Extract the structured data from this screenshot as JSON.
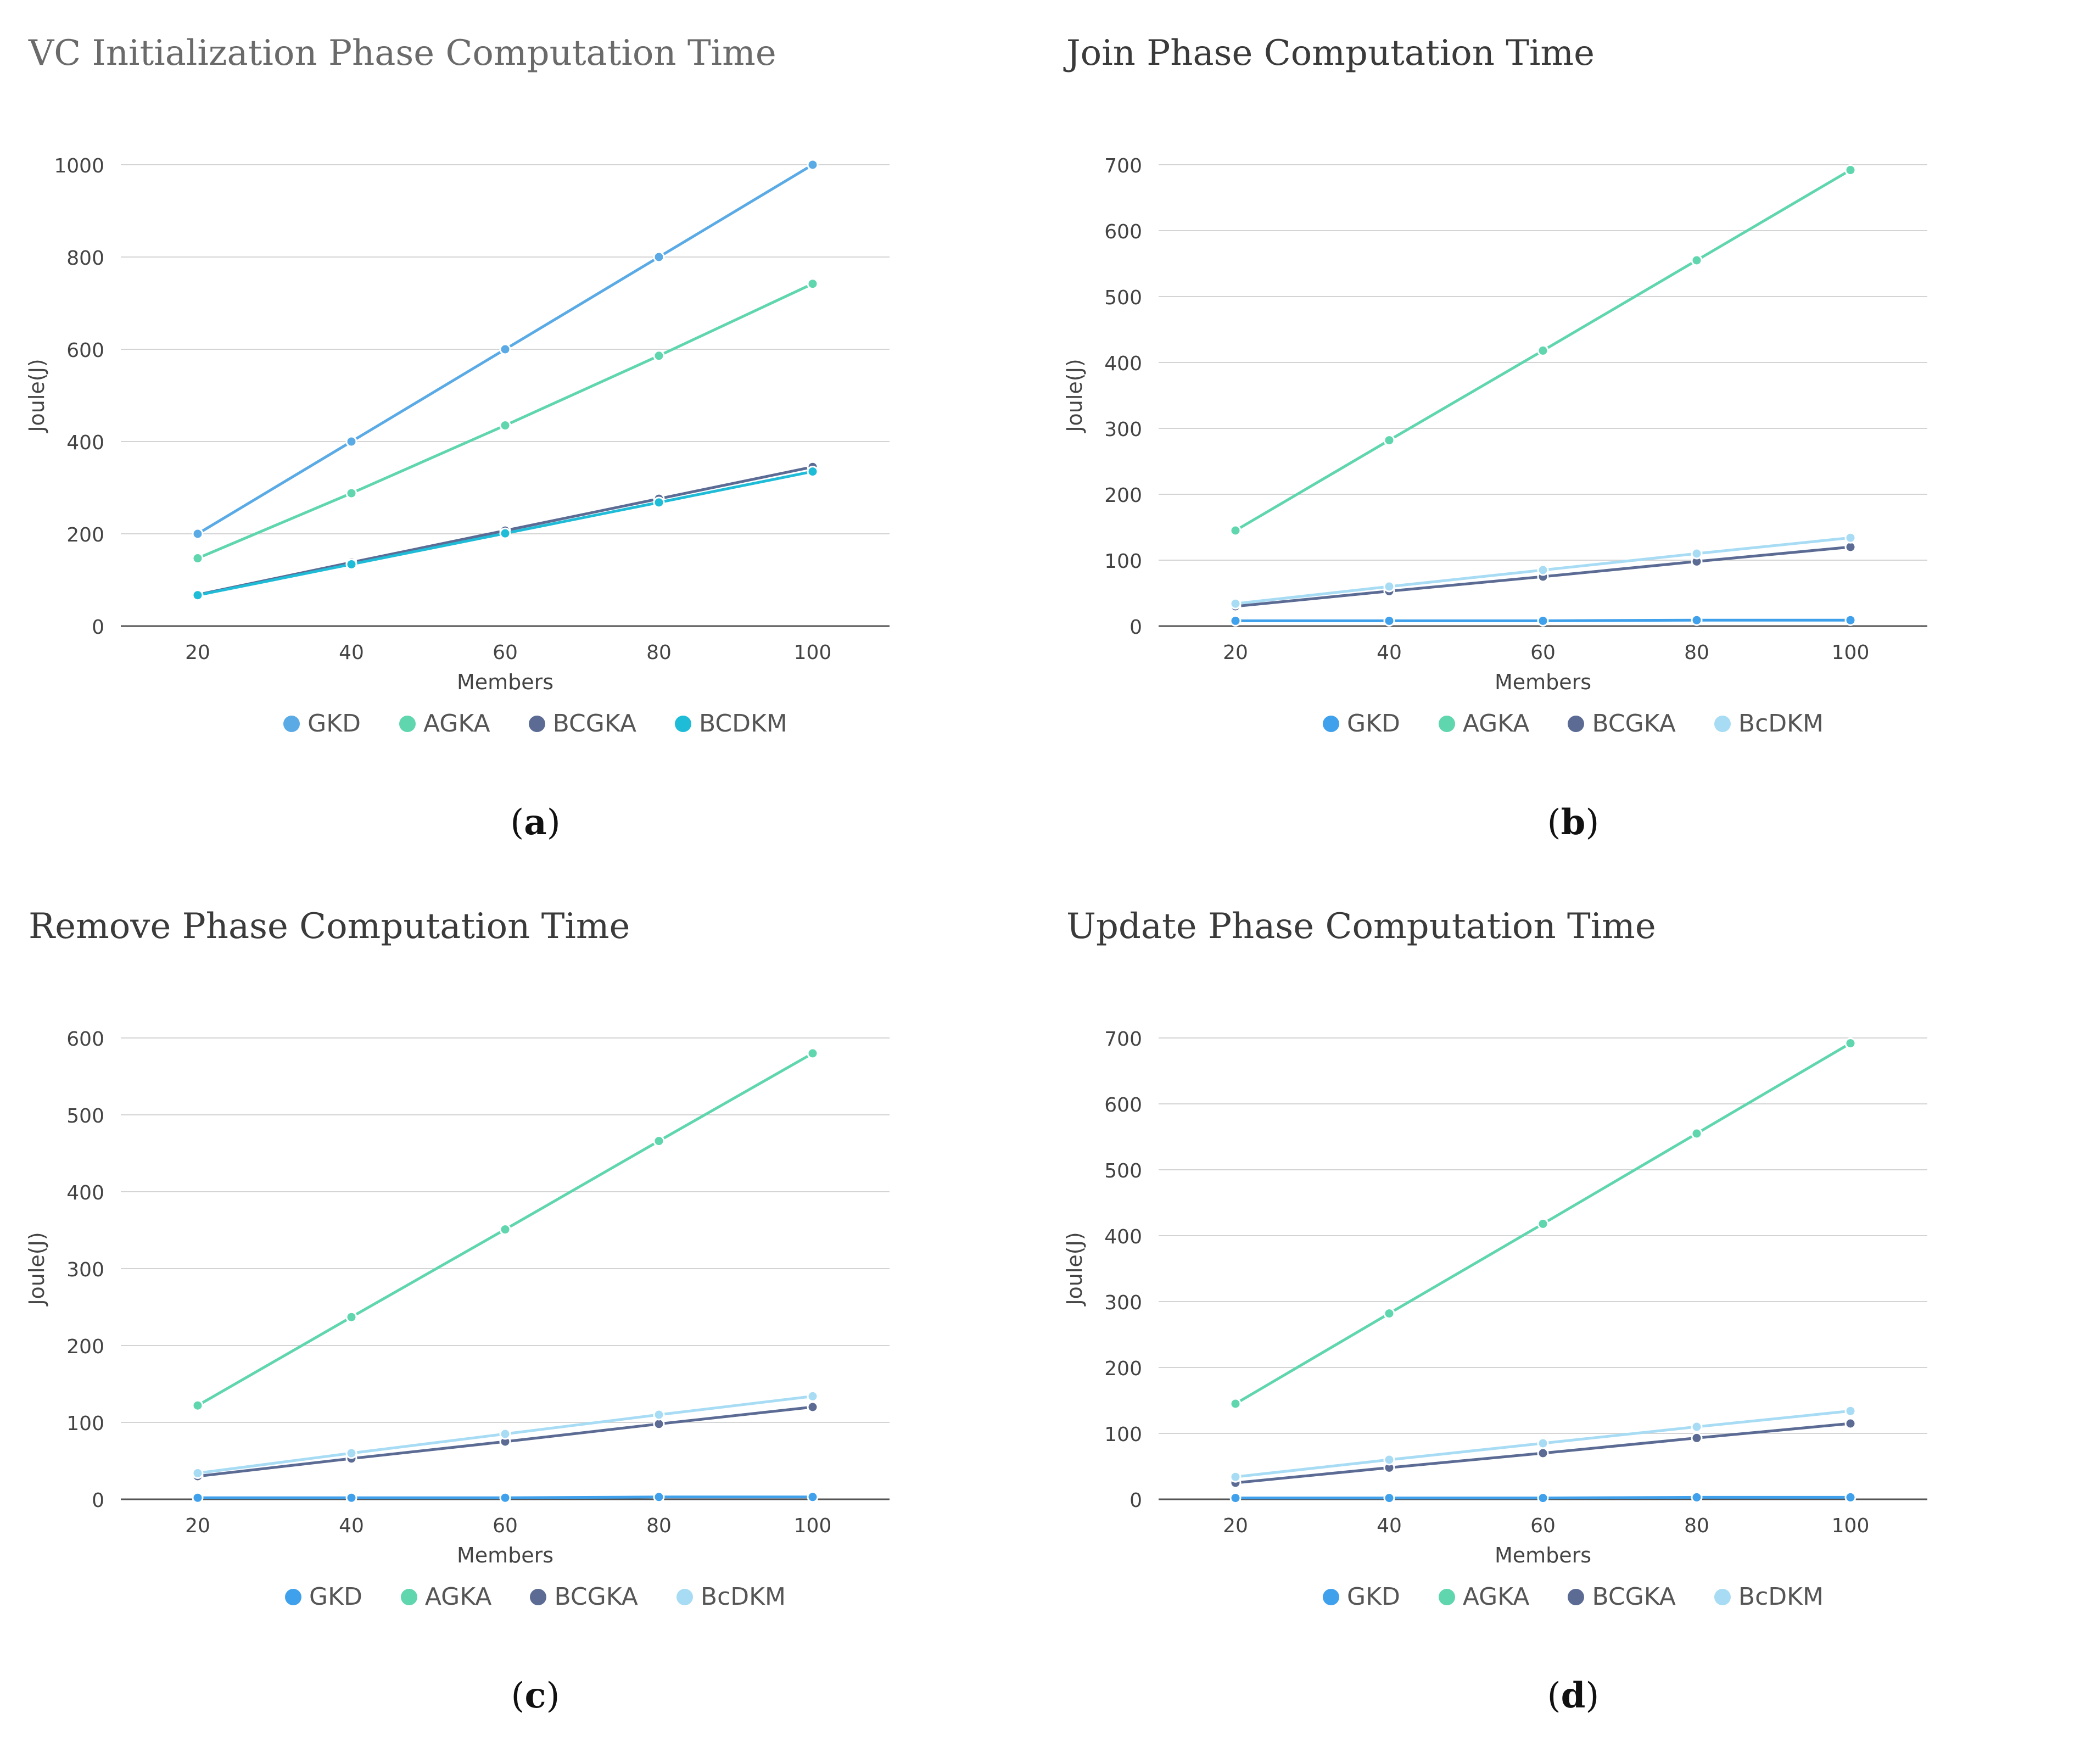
{
  "chart_data": [
    {
      "id": "a",
      "type": "line",
      "title": "VC Initialization Phase Computation Time",
      "xlabel": "Members",
      "ylabel": "Joule(J)",
      "x": [
        20,
        40,
        60,
        80,
        100
      ],
      "yticks": [
        0,
        200,
        400,
        600,
        800,
        1000
      ],
      "ylim": [
        0,
        1000
      ],
      "series": [
        {
          "name": "GKD",
          "color": "#5aaae6",
          "values": [
            200,
            400,
            600,
            800,
            1000
          ]
        },
        {
          "name": "AGKA",
          "color": "#5fd6ad",
          "values": [
            147,
            288,
            435,
            586,
            742
          ]
        },
        {
          "name": "BCGKA",
          "color": "#5b6b94",
          "values": [
            68,
            138,
            207,
            276,
            345
          ]
        },
        {
          "name": "BCDKM",
          "color": "#1fbcd8",
          "values": [
            67,
            134,
            201,
            268,
            335
          ]
        }
      ],
      "sublabel": "a"
    },
    {
      "id": "b",
      "type": "line",
      "title": "Join Phase Computation Time",
      "xlabel": "Members",
      "ylabel": "Joule(J)",
      "x": [
        20,
        40,
        60,
        80,
        100
      ],
      "yticks": [
        0,
        100,
        200,
        300,
        400,
        500,
        600,
        700
      ],
      "ylim": [
        0,
        700
      ],
      "series": [
        {
          "name": "GKD",
          "color": "#3fa0ec",
          "values": [
            8,
            8,
            8,
            9,
            9
          ]
        },
        {
          "name": "AGKA",
          "color": "#5fd6ad",
          "values": [
            145,
            282,
            418,
            555,
            692
          ]
        },
        {
          "name": "BCGKA",
          "color": "#5b6b94",
          "values": [
            30,
            53,
            75,
            98,
            120
          ]
        },
        {
          "name": "BcDKM",
          "color": "#a7dcf4",
          "values": [
            34,
            60,
            85,
            110,
            134
          ]
        }
      ],
      "sublabel": "b"
    },
    {
      "id": "c",
      "type": "line",
      "title": "Remove Phase Computation Time",
      "xlabel": "Members",
      "ylabel": "Joule(J)",
      "x": [
        20,
        40,
        60,
        80,
        100
      ],
      "yticks": [
        0,
        100,
        200,
        300,
        400,
        500,
        600
      ],
      "ylim": [
        0,
        600
      ],
      "series": [
        {
          "name": "GKD",
          "color": "#3fa0ec",
          "values": [
            2,
            2,
            2,
            3,
            3
          ]
        },
        {
          "name": "AGKA",
          "color": "#5fd6ad",
          "values": [
            122,
            237,
            351,
            466,
            580
          ]
        },
        {
          "name": "BCGKA",
          "color": "#5b6b94",
          "values": [
            30,
            53,
            75,
            98,
            120
          ]
        },
        {
          "name": "BcDKM",
          "color": "#a7dcf4",
          "values": [
            34,
            60,
            85,
            110,
            134
          ]
        }
      ],
      "sublabel": "c"
    },
    {
      "id": "d",
      "type": "line",
      "title": "Update Phase Computation Time",
      "xlabel": "Members",
      "ylabel": "Joule(J)",
      "x": [
        20,
        40,
        60,
        80,
        100
      ],
      "yticks": [
        0,
        100,
        200,
        300,
        400,
        500,
        600,
        700
      ],
      "ylim": [
        0,
        700
      ],
      "series": [
        {
          "name": "GKD",
          "color": "#3fa0ec",
          "values": [
            2,
            2,
            2,
            3,
            3
          ]
        },
        {
          "name": "AGKA",
          "color": "#5fd6ad",
          "values": [
            145,
            282,
            418,
            555,
            692
          ]
        },
        {
          "name": "BCGKA",
          "color": "#5b6b94",
          "values": [
            25,
            48,
            70,
            93,
            115
          ]
        },
        {
          "name": "BcDKM",
          "color": "#a7dcf4",
          "values": [
            34,
            60,
            85,
            110,
            134
          ]
        }
      ],
      "sublabel": "d"
    }
  ]
}
